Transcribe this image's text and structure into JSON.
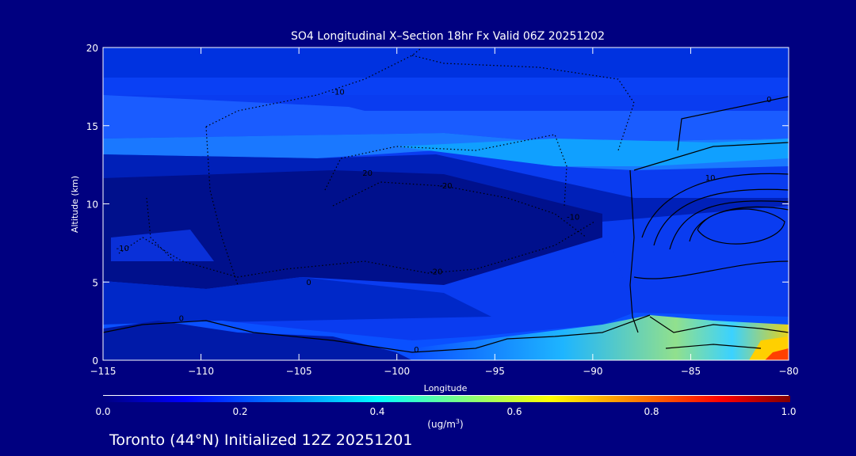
{
  "chart_data": {
    "type": "heatmap",
    "title": "SO4 Longitudinal X–Section 18hr  Fx Valid 06Z 20251202",
    "xlabel": "Longitude",
    "ylabel": "Altitude (km)",
    "xlim": [
      -115,
      -80
    ],
    "ylim": [
      0,
      20
    ],
    "xticks": [
      -115,
      -110,
      -105,
      -100,
      -95,
      -90,
      -85,
      -80
    ],
    "xtick_labels": [
      "−115",
      "−110",
      "−105",
      "−100",
      "−95",
      "−90",
      "−85",
      "−80"
    ],
    "yticks": [
      0,
      5,
      10,
      15,
      20
    ],
    "ytick_labels": [
      "0",
      "5",
      "10",
      "15",
      "20"
    ],
    "colorbar": {
      "range": [
        0.0,
        1.0
      ],
      "tick_labels": [
        "0.0",
        "0.2",
        "0.4",
        "0.6",
        "0.8",
        "1.0"
      ],
      "ticks": [
        0.0,
        0.2,
        0.4,
        0.6,
        0.8,
        1.0
      ],
      "units_label": "(ug/m",
      "units_sup": "3",
      "units_close": ")",
      "colors": [
        "#000080",
        "#0000ff",
        "#00ffff",
        "#ffff00",
        "#ff0000",
        "#800000"
      ]
    },
    "contour_labels": [
      "0",
      "-10",
      "-20",
      "10",
      "20"
    ],
    "footer": "Toronto (44°N) Initialized 12Z 20251201"
  }
}
